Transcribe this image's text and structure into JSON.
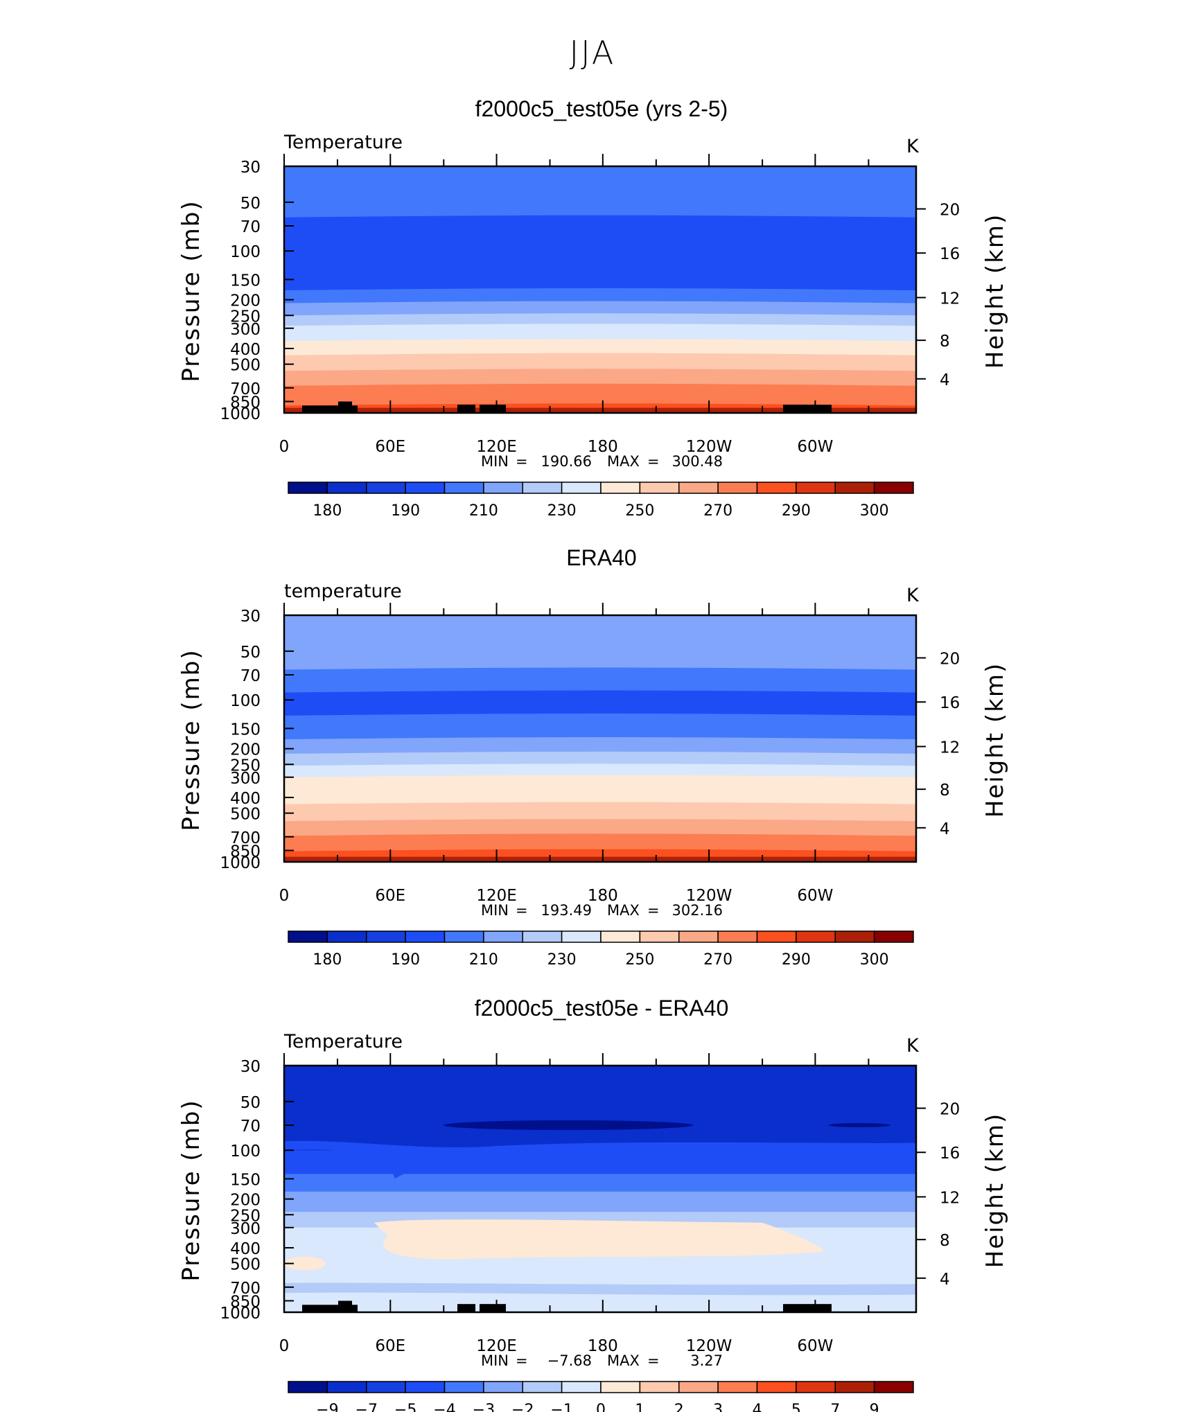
{
  "figure_title": "JJA",
  "palette": {
    "temperature": [
      "#000f8c",
      "#0a2fcc",
      "#1640e0",
      "#1f4df5",
      "#4278fb",
      "#80a5fb",
      "#b3cbf9",
      "#d9e8fc",
      "#fde9d6",
      "#fdcab0",
      "#fba887",
      "#fc7d51",
      "#fb5020",
      "#df3510",
      "#ad2008",
      "#8a0000"
    ],
    "difference": [
      "#000f8c",
      "#0a2fcc",
      "#1640e0",
      "#1f4df5",
      "#4278fb",
      "#80a5fb",
      "#b3cbf9",
      "#d9e8fc",
      "#fde9d6",
      "#fdcab0",
      "#fba887",
      "#fc7d51",
      "#fb5020",
      "#df3510",
      "#ad2008",
      "#8a0000"
    ]
  },
  "chart_data": [
    {
      "type": "heatmap",
      "plot_type": "filled-contour latitude-pressure/longitude-pressure cross-section",
      "title": "f2000c5_test05e (yrs 2-5)",
      "left_label": "Temperature",
      "units": "K",
      "ylabel": "Pressure (mb)",
      "y2label": "Height (km)",
      "xlabel": "",
      "x_ticks": [
        "0",
        "60E",
        "120E",
        "180",
        "120W",
        "60W"
      ],
      "y_ticks": [
        "30",
        "50",
        "70",
        "100",
        "150",
        "200",
        "250",
        "300",
        "400",
        "500",
        "700",
        "850",
        "1000"
      ],
      "y2_ticks": [
        "20",
        "16",
        "12",
        "8",
        "4"
      ],
      "min_label": "MIN",
      "min_value": "190.66",
      "max_label": "MAX",
      "max_value": "300.48",
      "colorbar_labels": [
        "180",
        "190",
        "210",
        "230",
        "250",
        "270",
        "290",
        "300"
      ],
      "colorbar_levels": [
        180,
        185,
        190,
        200,
        210,
        220,
        230,
        240,
        250,
        260,
        270,
        280,
        290,
        295,
        300
      ],
      "profile_colors": [
        {
          "pressure": 30,
          "color_index": 4
        },
        {
          "pressure": 45,
          "color_index": 4
        },
        {
          "pressure": 62,
          "color_index": 3
        },
        {
          "pressure": 135,
          "color_index": 3
        },
        {
          "pressure": 175,
          "color_index": 4
        },
        {
          "pressure": 210,
          "color_index": 5
        },
        {
          "pressure": 250,
          "color_index": 6
        },
        {
          "pressure": 290,
          "color_index": 7
        },
        {
          "pressure": 360,
          "color_index": 8
        },
        {
          "pressure": 440,
          "color_index": 9
        },
        {
          "pressure": 550,
          "color_index": 10
        },
        {
          "pressure": 680,
          "color_index": 11
        },
        {
          "pressure": 900,
          "color_index": 12
        },
        {
          "pressure": 1000,
          "color_index": 13
        }
      ]
    },
    {
      "type": "heatmap",
      "plot_type": "filled-contour cross-section",
      "title": "ERA40",
      "left_label": "temperature",
      "units": "K",
      "ylabel": "Pressure (mb)",
      "y2label": "Height (km)",
      "xlabel": "",
      "x_ticks": [
        "0",
        "60E",
        "120E",
        "180",
        "120W",
        "60W"
      ],
      "y_ticks": [
        "30",
        "50",
        "70",
        "100",
        "150",
        "200",
        "250",
        "300",
        "400",
        "500",
        "700",
        "850",
        "1000"
      ],
      "y2_ticks": [
        "20",
        "16",
        "12",
        "8",
        "4"
      ],
      "min_label": "MIN",
      "min_value": "193.49",
      "max_label": "MAX",
      "max_value": "302.16",
      "colorbar_labels": [
        "180",
        "190",
        "210",
        "230",
        "250",
        "270",
        "290",
        "300"
      ],
      "colorbar_levels": [
        180,
        185,
        190,
        200,
        210,
        220,
        230,
        240,
        250,
        260,
        270,
        280,
        290,
        295,
        300
      ],
      "profile_colors": [
        {
          "pressure": 30,
          "color_index": 5
        },
        {
          "pressure": 48,
          "color_index": 5
        },
        {
          "pressure": 65,
          "color_index": 4
        },
        {
          "pressure": 90,
          "color_index": 3
        },
        {
          "pressure": 125,
          "color_index": 4
        },
        {
          "pressure": 175,
          "color_index": 5
        },
        {
          "pressure": 215,
          "color_index": 6
        },
        {
          "pressure": 255,
          "color_index": 7
        },
        {
          "pressure": 300,
          "color_index": 8
        },
        {
          "pressure": 350,
          "color_index": 8
        },
        {
          "pressure": 440,
          "color_index": 9
        },
        {
          "pressure": 560,
          "color_index": 10
        },
        {
          "pressure": 690,
          "color_index": 11
        },
        {
          "pressure": 860,
          "color_index": 12
        },
        {
          "pressure": 1000,
          "color_index": 13
        }
      ]
    },
    {
      "type": "heatmap",
      "plot_type": "filled-contour difference cross-section",
      "title": "f2000c5_test05e - ERA40",
      "left_label": "Temperature",
      "units": "K",
      "ylabel": "Pressure (mb)",
      "y2label": "Height (km)",
      "xlabel": "",
      "x_ticks": [
        "0",
        "60E",
        "120E",
        "180",
        "120W",
        "60W"
      ],
      "y_ticks": [
        "30",
        "50",
        "70",
        "100",
        "150",
        "200",
        "250",
        "300",
        "400",
        "500",
        "700",
        "850",
        "1000"
      ],
      "y2_ticks": [
        "20",
        "16",
        "12",
        "8",
        "4"
      ],
      "min_label": "MIN",
      "min_value": "−7.68",
      "max_label": "MAX",
      "max_value": "3.27",
      "colorbar_labels": [
        "−9",
        "−7",
        "−5",
        "−4",
        "−3",
        "−2",
        "−1",
        "0",
        "1",
        "2",
        "3",
        "4",
        "5",
        "7",
        "9"
      ],
      "colorbar_levels": [
        -9,
        -7,
        -5,
        -4,
        -3,
        -2,
        -1,
        0,
        1,
        2,
        3,
        4,
        5,
        7,
        9
      ],
      "profile_colors": [
        {
          "pressure": 30,
          "color_index": 1
        },
        {
          "pressure": 85,
          "color_index": 1
        },
        {
          "pressure": 100,
          "color_index": 3
        },
        {
          "pressure": 140,
          "color_index": 4
        },
        {
          "pressure": 180,
          "color_index": 5
        },
        {
          "pressure": 240,
          "color_index": 6
        },
        {
          "pressure": 300,
          "color_index": 7
        },
        {
          "pressure": 1000,
          "color_index": 7
        }
      ]
    }
  ]
}
